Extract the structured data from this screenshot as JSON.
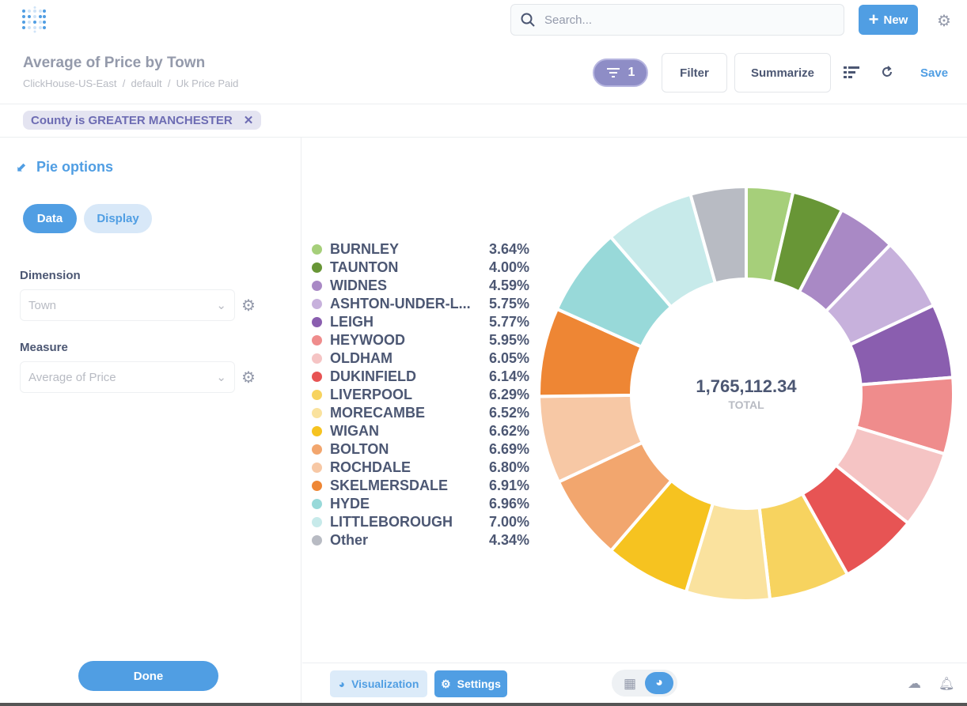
{
  "header": {
    "search_placeholder": "Search...",
    "new_label": "New"
  },
  "question": {
    "title": "Average of Price by Town",
    "breadcrumbs": [
      "ClickHouse-US-East",
      "default",
      "Uk Price Paid"
    ],
    "filter_count": "1",
    "filter_label": "Filter",
    "summarize_label": "Summarize",
    "save_label": "Save"
  },
  "filter_chip": "County is GREATER MANCHESTER",
  "sidebar": {
    "title": "Pie options",
    "tabs": [
      "Data",
      "Display"
    ],
    "dimension_label": "Dimension",
    "dimension_value": "Town",
    "measure_label": "Measure",
    "measure_value": "Average of Price",
    "done_label": "Done"
  },
  "footer": {
    "visualization_label": "Visualization",
    "settings_label": "Settings"
  },
  "chart_data": {
    "type": "pie",
    "donut": true,
    "total": "1,765,112.34",
    "total_label": "TOTAL",
    "legend_position": "left",
    "slices": [
      {
        "name": "BURNLEY",
        "pct": "3.64%",
        "value": 3.64,
        "color": "#A6CF7A"
      },
      {
        "name": "TAUNTON",
        "pct": "4.00%",
        "value": 4.0,
        "color": "#689636"
      },
      {
        "name": "WIDNES",
        "pct": "4.59%",
        "value": 4.59,
        "color": "#A989C5"
      },
      {
        "name": "ASHTON-UNDER-L...",
        "pct": "5.75%",
        "value": 5.75,
        "color": "#C7B1DC"
      },
      {
        "name": "LEIGH",
        "pct": "5.77%",
        "value": 5.77,
        "color": "#8A5EAF"
      },
      {
        "name": "HEYWOOD",
        "pct": "5.95%",
        "value": 5.95,
        "color": "#EF8C8C"
      },
      {
        "name": "OLDHAM",
        "pct": "6.05%",
        "value": 6.05,
        "color": "#F5C4C4"
      },
      {
        "name": "DUKINFIELD",
        "pct": "6.14%",
        "value": 6.14,
        "color": "#E75454"
      },
      {
        "name": "LIVERPOOL",
        "pct": "6.29%",
        "value": 6.29,
        "color": "#F7D35F"
      },
      {
        "name": "MORECAMBE",
        "pct": "6.52%",
        "value": 6.52,
        "color": "#FAE29E"
      },
      {
        "name": "WIGAN",
        "pct": "6.62%",
        "value": 6.62,
        "color": "#F6C320"
      },
      {
        "name": "BOLTON",
        "pct": "6.69%",
        "value": 6.69,
        "color": "#F2A66E"
      },
      {
        "name": "ROCHDALE",
        "pct": "6.80%",
        "value": 6.8,
        "color": "#F7C8A5"
      },
      {
        "name": "SKELMERSDALE",
        "pct": "6.91%",
        "value": 6.91,
        "color": "#EE8634"
      },
      {
        "name": "HYDE",
        "pct": "6.96%",
        "value": 6.96,
        "color": "#98D9D9"
      },
      {
        "name": "LITTLEBOROUGH",
        "pct": "7.00%",
        "value": 7.0,
        "color": "#C7EAEA"
      },
      {
        "name": "Other",
        "pct": "4.34%",
        "value": 4.34,
        "color": "#B8BBC3"
      }
    ]
  }
}
